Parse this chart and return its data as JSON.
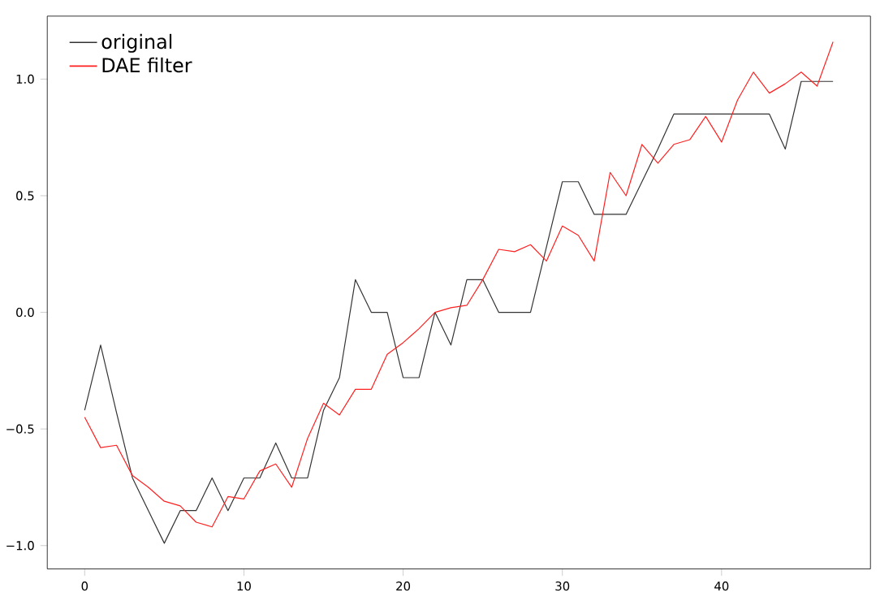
{
  "chart_data": {
    "type": "line",
    "x": [
      0,
      1,
      2,
      3,
      4,
      5,
      6,
      7,
      8,
      9,
      10,
      11,
      12,
      13,
      14,
      15,
      16,
      17,
      18,
      19,
      20,
      21,
      22,
      23,
      24,
      25,
      26,
      27,
      28,
      29,
      30,
      31,
      32,
      33,
      34,
      35,
      36,
      37,
      38,
      39,
      40,
      41,
      42,
      43,
      44,
      45,
      46,
      47
    ],
    "series": [
      {
        "name": "original",
        "color": "#333333",
        "values": [
          -0.42,
          -0.14,
          -0.43,
          -0.71,
          -0.85,
          -0.99,
          -0.85,
          -0.85,
          -0.71,
          -0.85,
          -0.71,
          -0.71,
          -0.56,
          -0.71,
          -0.71,
          -0.42,
          -0.28,
          0.14,
          0,
          0,
          -0.28,
          -0.28,
          0,
          -0.14,
          0.14,
          0.14,
          0,
          0,
          0,
          0.28,
          0.56,
          0.56,
          0.42,
          0.42,
          0.42,
          0.56,
          0.7,
          0.85,
          0.85,
          0.85,
          0.85,
          0.85,
          0.85,
          0.85,
          0.7,
          0.99,
          0.99,
          0.99
        ]
      },
      {
        "name": "DAE filter",
        "color": "#ff2020",
        "values": [
          -0.45,
          -0.58,
          -0.57,
          -0.7,
          -0.75,
          -0.81,
          -0.83,
          -0.9,
          -0.92,
          -0.79,
          -0.8,
          -0.68,
          -0.65,
          -0.75,
          -0.54,
          -0.39,
          -0.44,
          -0.33,
          -0.33,
          -0.18,
          -0.13,
          -0.07,
          0,
          0.02,
          0.03,
          0.14,
          0.27,
          0.26,
          0.29,
          0.22,
          0.37,
          0.33,
          0.22,
          0.6,
          0.5,
          0.72,
          0.64,
          0.72,
          0.74,
          0.84,
          0.73,
          0.91,
          1.03,
          0.94,
          0.98,
          1.03,
          0.97,
          1.16
        ]
      }
    ],
    "xlim": [
      -2.35,
      49.35
    ],
    "ylim": [
      -1.1,
      1.27
    ],
    "xticks": [
      0,
      10,
      20,
      30,
      40
    ],
    "yticks": [
      {
        "value": -1.0,
        "label": "−1.0"
      },
      {
        "value": -0.5,
        "label": "−0.5"
      },
      {
        "value": 0.0,
        "label": "0.0"
      },
      {
        "value": 0.5,
        "label": "0.5"
      },
      {
        "value": 1.0,
        "label": "1.0"
      }
    ],
    "legend": "top left",
    "line_style": "solid",
    "marker": "none"
  }
}
